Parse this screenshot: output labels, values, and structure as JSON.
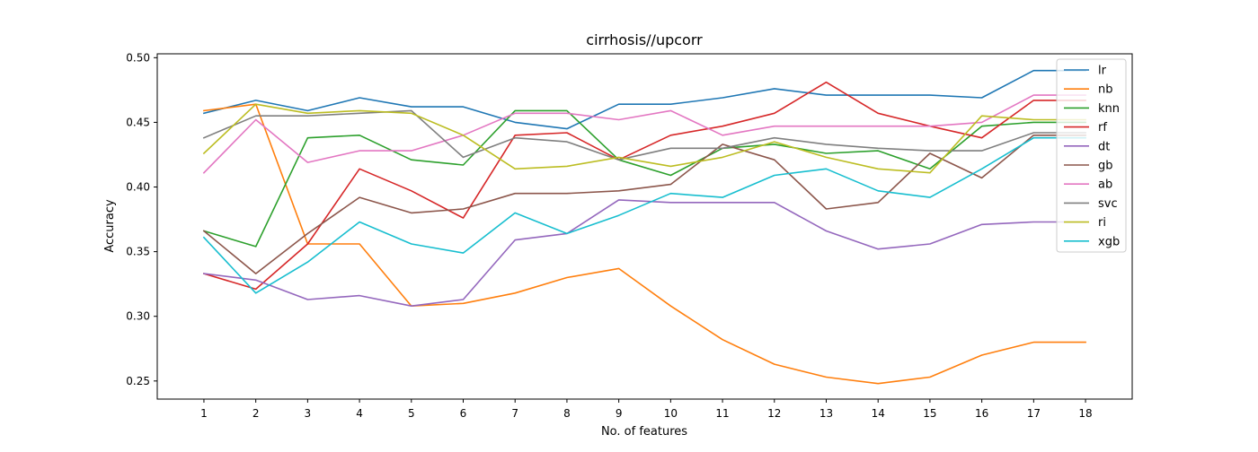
{
  "chart_data": {
    "type": "line",
    "title": "cirrhosis//upcorr",
    "xlabel": "No. of features",
    "ylabel": "Accuracy",
    "x": [
      1,
      2,
      3,
      4,
      5,
      6,
      7,
      8,
      9,
      10,
      11,
      12,
      13,
      14,
      15,
      16,
      17,
      18
    ],
    "xlim": [
      0.1,
      18.9
    ],
    "ylim": [
      0.236,
      0.503
    ],
    "yticks": [
      0.25,
      0.3,
      0.35,
      0.4,
      0.45,
      0.5
    ],
    "ytick_labels": [
      "0.25",
      "0.30",
      "0.35",
      "0.40",
      "0.45",
      "0.50"
    ],
    "xtick_labels": [
      "1",
      "2",
      "3",
      "4",
      "5",
      "6",
      "7",
      "8",
      "9",
      "10",
      "11",
      "12",
      "13",
      "14",
      "15",
      "16",
      "17",
      "18"
    ],
    "grid": false,
    "legend_position": "upper right",
    "series": [
      {
        "name": "lr",
        "color": "#1f77b4",
        "values": [
          0.457,
          0.467,
          0.459,
          0.469,
          0.462,
          0.462,
          0.45,
          0.445,
          0.464,
          0.464,
          0.469,
          0.476,
          0.471,
          0.471,
          0.471,
          0.469,
          0.49,
          0.49
        ]
      },
      {
        "name": "nb",
        "color": "#ff7f0e",
        "values": [
          0.459,
          0.464,
          0.356,
          0.356,
          0.308,
          0.31,
          0.318,
          0.33,
          0.337,
          0.308,
          0.282,
          0.263,
          0.253,
          0.248,
          0.253,
          0.27,
          0.28,
          0.28
        ]
      },
      {
        "name": "knn",
        "color": "#2ca02c",
        "values": [
          0.366,
          0.354,
          0.438,
          0.44,
          0.421,
          0.417,
          0.459,
          0.459,
          0.421,
          0.409,
          0.43,
          0.433,
          0.426,
          0.428,
          0.414,
          0.447,
          0.45,
          0.45
        ]
      },
      {
        "name": "rf",
        "color": "#d62728",
        "values": [
          0.333,
          0.321,
          0.356,
          0.414,
          0.397,
          0.376,
          0.44,
          0.442,
          0.421,
          0.44,
          0.447,
          0.457,
          0.481,
          0.457,
          0.447,
          0.438,
          0.467,
          0.467
        ]
      },
      {
        "name": "dt",
        "color": "#9467bd",
        "values": [
          0.333,
          0.328,
          0.313,
          0.316,
          0.308,
          0.313,
          0.359,
          0.364,
          0.39,
          0.388,
          0.388,
          0.388,
          0.366,
          0.352,
          0.356,
          0.371,
          0.373,
          0.373
        ]
      },
      {
        "name": "gb",
        "color": "#8c564b",
        "values": [
          0.366,
          0.333,
          0.364,
          0.392,
          0.38,
          0.383,
          0.395,
          0.395,
          0.397,
          0.402,
          0.433,
          0.421,
          0.383,
          0.388,
          0.426,
          0.407,
          0.44,
          0.44
        ]
      },
      {
        "name": "ab",
        "color": "#e377c2",
        "values": [
          0.411,
          0.452,
          0.419,
          0.428,
          0.428,
          0.44,
          0.457,
          0.457,
          0.452,
          0.459,
          0.44,
          0.447,
          0.447,
          0.447,
          0.447,
          0.45,
          0.471,
          0.471
        ]
      },
      {
        "name": "svc",
        "color": "#7f7f7f",
        "values": [
          0.438,
          0.455,
          0.455,
          0.457,
          0.459,
          0.423,
          0.438,
          0.435,
          0.421,
          0.43,
          0.43,
          0.438,
          0.433,
          0.43,
          0.428,
          0.428,
          0.442,
          0.442
        ]
      },
      {
        "name": "ri",
        "color": "#bcbd22",
        "values": [
          0.426,
          0.464,
          0.457,
          0.459,
          0.457,
          0.44,
          0.414,
          0.416,
          0.423,
          0.416,
          0.423,
          0.435,
          0.423,
          0.414,
          0.411,
          0.455,
          0.452,
          0.452
        ]
      },
      {
        "name": "xgb",
        "color": "#17becf",
        "values": [
          0.361,
          0.318,
          0.342,
          0.373,
          0.356,
          0.349,
          0.38,
          0.364,
          0.378,
          0.395,
          0.392,
          0.409,
          0.414,
          0.397,
          0.392,
          0.414,
          0.438,
          0.438
        ]
      }
    ]
  }
}
